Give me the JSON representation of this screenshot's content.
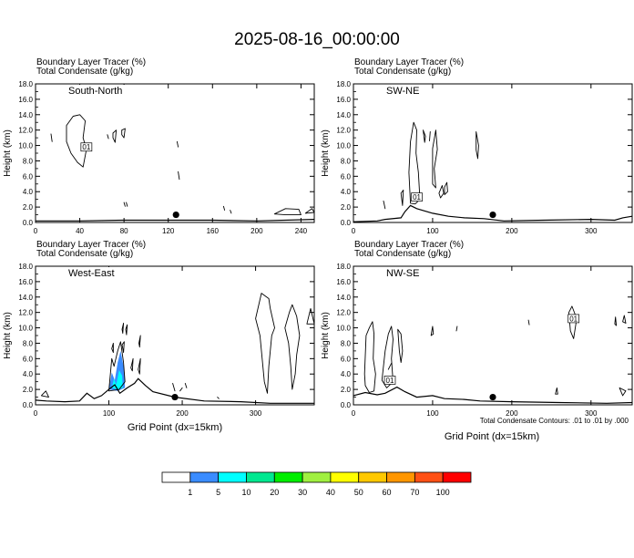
{
  "title": "2025-08-16_00:00:00",
  "panel_header": {
    "line1": "Boundary Layer Tracer   (%)",
    "line2": "Total Condensate   (g/kg)"
  },
  "ylabel": "Height (km)",
  "xlabel": "Grid Point (dx=15km)",
  "contour_note": "Total Condensate Contours: .01 to .01 by .000",
  "contour_label": "01",
  "colorbar": {
    "labels": [
      "1",
      "5",
      "10",
      "20",
      "30",
      "40",
      "50",
      "60",
      "70",
      "100"
    ],
    "colors": [
      "#ffffff",
      "#3a8cff",
      "#00ffff",
      "#00e890",
      "#00ee00",
      "#a0f040",
      "#ffff00",
      "#ffc800",
      "#ff9600",
      "#ff5014",
      "#ff0000"
    ]
  },
  "chart_data": [
    {
      "type": "contour",
      "label": "South-North",
      "xlim": [
        0,
        252
      ],
      "ylim": [
        0,
        18
      ],
      "xticks": [
        "0",
        "40",
        "80",
        "120",
        "160",
        "200",
        "240"
      ],
      "yticks": [
        "0.0",
        "2.0",
        "4.0",
        "6.0",
        "8.0",
        "10.0",
        "12.0",
        "14.0",
        "16.0",
        "18.0"
      ],
      "marker": [
        127,
        1.0
      ],
      "terrain": [
        [
          0,
          0.2
        ],
        [
          40,
          0.2
        ],
        [
          80,
          0.3
        ],
        [
          110,
          0.3
        ],
        [
          160,
          0.3
        ],
        [
          200,
          0.2
        ],
        [
          252,
          0.4
        ]
      ],
      "contours": [
        [
          [
            28,
            12.6
          ],
          [
            34,
            13.8
          ],
          [
            40,
            14.0
          ],
          [
            45,
            13.2
          ],
          [
            43,
            11.0
          ],
          [
            46,
            9.5
          ],
          [
            43,
            7.2
          ],
          [
            38,
            7.8
          ],
          [
            32,
            9.0
          ],
          [
            28,
            10.5
          ]
        ],
        [
          [
            14,
            11.5
          ],
          [
            15,
            10.5
          ]
        ],
        [
          [
            70,
            11.6
          ],
          [
            73,
            12.0
          ],
          [
            72,
            10.4
          ],
          [
            70,
            11.0
          ]
        ],
        [
          [
            78,
            12.0
          ],
          [
            81,
            12.2
          ],
          [
            80,
            11.0
          ],
          [
            78,
            11.4
          ]
        ],
        [
          [
            65,
            11.4
          ],
          [
            66,
            10.9
          ]
        ],
        [
          [
            128,
            10.5
          ],
          [
            129,
            9.8
          ]
        ],
        [
          [
            129,
            6.6
          ],
          [
            130,
            5.6
          ]
        ],
        [
          [
            80,
            2.6
          ],
          [
            81,
            2.1
          ]
        ],
        [
          [
            82,
            2.6
          ],
          [
            83,
            2.1
          ]
        ],
        [
          [
            170,
            2.1
          ],
          [
            171,
            1.6
          ]
        ],
        [
          [
            176,
            1.6
          ],
          [
            177,
            1.2
          ]
        ],
        [
          [
            216,
            1.1
          ],
          [
            226,
            1.8
          ],
          [
            238,
            1.7
          ],
          [
            240,
            1.0
          ],
          [
            226,
            1.0
          ]
        ],
        [
          [
            244,
            1.2
          ],
          [
            250,
            1.8
          ],
          [
            252,
            1.3
          ]
        ]
      ],
      "labels": [
        [
          46,
          9.8,
          "01"
        ]
      ],
      "fills": []
    },
    {
      "type": "contour",
      "label": "SW-NE",
      "xlim": [
        0,
        352
      ],
      "ylim": [
        0,
        18
      ],
      "xticks": [
        "0",
        "100",
        "200",
        "300"
      ],
      "yticks": [
        "0.0",
        "2.0",
        "4.0",
        "6.0",
        "8.0",
        "10.0",
        "12.0",
        "14.0",
        "16.0",
        "18.0"
      ],
      "marker": [
        176,
        1.0
      ],
      "terrain": [
        [
          0,
          0.1
        ],
        [
          30,
          0.2
        ],
        [
          40,
          0.4
        ],
        [
          60,
          0.6
        ],
        [
          65,
          1.4
        ],
        [
          72,
          2.2
        ],
        [
          80,
          1.8
        ],
        [
          100,
          1.2
        ],
        [
          120,
          0.8
        ],
        [
          140,
          0.6
        ],
        [
          165,
          0.5
        ],
        [
          190,
          0.2
        ],
        [
          240,
          0.3
        ],
        [
          300,
          0.4
        ],
        [
          330,
          0.3
        ],
        [
          340,
          0.6
        ],
        [
          352,
          0.8
        ]
      ],
      "contours": [
        [
          [
            72,
            2.5
          ],
          [
            70,
            6.5
          ],
          [
            72,
            10.5
          ],
          [
            76,
            13.0
          ],
          [
            80,
            12.0
          ],
          [
            79,
            9.0
          ],
          [
            82,
            6.5
          ],
          [
            84,
            3.0
          ],
          [
            78,
            2.4
          ]
        ],
        [
          [
            88,
            12.0
          ],
          [
            90,
            10.4
          ],
          [
            91,
            11.2
          ]
        ],
        [
          [
            96,
            10.6
          ],
          [
            97,
            11.8
          ]
        ],
        [
          [
            100,
            9.6
          ],
          [
            104,
            12.0
          ],
          [
            106,
            9.5
          ],
          [
            102,
            7.0
          ],
          [
            104,
            4.5
          ],
          [
            100,
            5.0
          ]
        ],
        [
          [
            108,
            3.8
          ],
          [
            112,
            4.8
          ],
          [
            114,
            3.8
          ],
          [
            110,
            3.2
          ]
        ],
        [
          [
            115,
            4.6
          ],
          [
            118,
            5.2
          ],
          [
            119,
            4.0
          ],
          [
            115,
            3.6
          ]
        ],
        [
          [
            62,
            2.2
          ],
          [
            60,
            3.8
          ],
          [
            63,
            4.2
          ]
        ],
        [
          [
            155,
            11.8
          ],
          [
            158,
            10.0
          ],
          [
            157,
            8.3
          ],
          [
            155,
            9.4
          ]
        ],
        [
          [
            38,
            2.8
          ],
          [
            40,
            1.8
          ]
        ]
      ],
      "labels": [
        [
          80,
          3.3,
          "01"
        ]
      ],
      "fills": []
    },
    {
      "type": "contour",
      "label": "West-East",
      "xlim": [
        0,
        380
      ],
      "ylim": [
        0,
        18
      ],
      "xticks": [
        "0",
        "100",
        "200",
        "300"
      ],
      "yticks": [
        "0.0",
        "2.0",
        "4.0",
        "6.0",
        "8.0",
        "10.0",
        "12.0",
        "14.0",
        "16.0",
        "18.0"
      ],
      "marker": [
        190,
        1.0
      ],
      "terrain": [
        [
          0,
          0.6
        ],
        [
          15,
          0.5
        ],
        [
          40,
          0.4
        ],
        [
          60,
          0.5
        ],
        [
          70,
          1.5
        ],
        [
          80,
          0.8
        ],
        [
          90,
          1.2
        ],
        [
          100,
          2.0
        ],
        [
          108,
          2.6
        ],
        [
          115,
          1.5
        ],
        [
          125,
          2.2
        ],
        [
          135,
          2.8
        ],
        [
          140,
          3.4
        ],
        [
          150,
          2.5
        ],
        [
          160,
          1.7
        ],
        [
          190,
          1.0
        ],
        [
          230,
          0.5
        ],
        [
          280,
          0.4
        ],
        [
          320,
          0.2
        ],
        [
          380,
          0.2
        ]
      ],
      "contours": [
        [
          [
            100,
            1.8
          ],
          [
            104,
            6.0
          ],
          [
            107,
            5.0
          ],
          [
            112,
            7.0
          ],
          [
            116,
            8.2
          ],
          [
            120,
            5.5
          ],
          [
            122,
            3.0
          ],
          [
            114,
            2.0
          ]
        ],
        [
          [
            104,
            7.3
          ],
          [
            106,
            8.0
          ],
          [
            106,
            6.8
          ]
        ],
        [
          [
            118,
            7.8
          ],
          [
            121,
            8.2
          ],
          [
            120,
            6.8
          ]
        ],
        [
          [
            130,
            4.8
          ],
          [
            133,
            6.0
          ],
          [
            132,
            4.4
          ]
        ],
        [
          [
            140,
            4.6
          ],
          [
            143,
            6.0
          ],
          [
            142,
            4.0
          ]
        ],
        [
          [
            141,
            8.0
          ],
          [
            143,
            9.0
          ],
          [
            142,
            7.5
          ]
        ],
        [
          [
            118,
            9.8
          ],
          [
            120,
            10.6
          ],
          [
            119,
            9.3
          ]
        ],
        [
          [
            123,
            9.8
          ],
          [
            125,
            10.4
          ],
          [
            124,
            9.1
          ]
        ],
        [
          [
            8,
            1.2
          ],
          [
            14,
            1.8
          ],
          [
            18,
            1.0
          ]
        ],
        [
          [
            187,
            2.8
          ],
          [
            190,
            1.8
          ]
        ],
        [
          [
            197,
            1.8
          ],
          [
            200,
            2.2
          ]
        ],
        [
          [
            204,
            2.8
          ],
          [
            206,
            2.2
          ]
        ],
        [
          [
            248,
            1.0
          ],
          [
            250,
            0.8
          ]
        ],
        [
          [
            300,
            11.2
          ],
          [
            308,
            14.5
          ],
          [
            318,
            13.8
          ],
          [
            320,
            12.5
          ],
          [
            326,
            10.0
          ],
          [
            322,
            9.0
          ],
          [
            318,
            5.0
          ],
          [
            316,
            1.5
          ],
          [
            312,
            3.0
          ],
          [
            306,
            9.0
          ]
        ],
        [
          [
            340,
            10.0
          ],
          [
            346,
            12.0
          ],
          [
            350,
            13.0
          ],
          [
            356,
            11.5
          ],
          [
            360,
            9.0
          ],
          [
            356,
            6.5
          ],
          [
            354,
            4.0
          ],
          [
            350,
            2.0
          ],
          [
            348,
            5.0
          ],
          [
            345,
            8.0
          ]
        ],
        [
          [
            370,
            10.5
          ],
          [
            375,
            12.5
          ],
          [
            380,
            10.5
          ]
        ]
      ],
      "labels": [],
      "fills": [
        {
          "color": "#3a8cff",
          "points": [
            [
              100,
              2.0
            ],
            [
              104,
              4.2
            ],
            [
              108,
              3.2
            ],
            [
              112,
              5.5
            ],
            [
              116,
              7.0
            ],
            [
              121,
              4.5
            ],
            [
              122,
              2.2
            ],
            [
              112,
              1.8
            ]
          ]
        },
        {
          "color": "#00ffff",
          "points": [
            [
              104,
              2.2
            ],
            [
              107,
              3.4
            ],
            [
              110,
              2.6
            ],
            [
              114,
              4.5
            ],
            [
              118,
              3.8
            ],
            [
              119,
              2.2
            ],
            [
              112,
              2.0
            ]
          ]
        }
      ]
    },
    {
      "type": "contour",
      "label": "NW-SE",
      "xlim": [
        0,
        352
      ],
      "ylim": [
        0,
        18
      ],
      "xticks": [
        "0",
        "100",
        "200",
        "300"
      ],
      "yticks": [
        "0.0",
        "2.0",
        "4.0",
        "6.0",
        "8.0",
        "10.0",
        "12.0",
        "14.0",
        "16.0",
        "18.0"
      ],
      "marker": [
        176,
        1.0
      ],
      "terrain": [
        [
          0,
          1.2
        ],
        [
          15,
          1.6
        ],
        [
          30,
          1.3
        ],
        [
          40,
          1.5
        ],
        [
          55,
          2.3
        ],
        [
          65,
          1.7
        ],
        [
          80,
          1.0
        ],
        [
          100,
          1.2
        ],
        [
          115,
          0.8
        ],
        [
          140,
          0.7
        ],
        [
          160,
          0.5
        ],
        [
          200,
          0.4
        ],
        [
          260,
          0.3
        ],
        [
          320,
          0.2
        ],
        [
          352,
          0.3
        ]
      ],
      "contours": [
        [
          [
            14,
            4.0
          ],
          [
            16,
            9.0
          ],
          [
            20,
            10.0
          ],
          [
            24,
            10.8
          ],
          [
            26,
            9.2
          ],
          [
            25,
            6.0
          ],
          [
            28,
            4.0
          ],
          [
            26,
            1.8
          ],
          [
            20,
            1.6
          ],
          [
            15,
            2.5
          ]
        ],
        [
          [
            36,
            3.2
          ],
          [
            40,
            7.0
          ],
          [
            44,
            9.2
          ],
          [
            48,
            10.2
          ],
          [
            50,
            8.5
          ],
          [
            48,
            6.0
          ],
          [
            50,
            3.0
          ],
          [
            42,
            2.2
          ]
        ],
        [
          [
            56,
            9.8
          ],
          [
            60,
            9.2
          ],
          [
            62,
            7.0
          ],
          [
            60,
            5.5
          ],
          [
            58,
            7.0
          ]
        ],
        [
          [
            44,
            4.6
          ],
          [
            48,
            5.4
          ]
        ],
        [
          [
            98,
            9.0
          ],
          [
            100,
            10.2
          ],
          [
            101,
            9.2
          ]
        ],
        [
          [
            130,
            9.6
          ],
          [
            131,
            10.2
          ]
        ],
        [
          [
            221,
            11.0
          ],
          [
            222,
            10.4
          ]
        ],
        [
          [
            255,
            1.4
          ],
          [
            257,
            2.2
          ],
          [
            258,
            1.4
          ]
        ],
        [
          [
            272,
            12.0
          ],
          [
            276,
            12.8
          ],
          [
            282,
            11.2
          ],
          [
            278,
            8.6
          ],
          [
            274,
            9.6
          ]
        ],
        [
          [
            330,
            10.5
          ],
          [
            331,
            11.4
          ],
          [
            332,
            10.3
          ]
        ],
        [
          [
            340,
            10.8
          ],
          [
            342,
            11.6
          ],
          [
            344,
            10.6
          ]
        ],
        [
          [
            336,
            2.2
          ],
          [
            340,
            1.2
          ],
          [
            344,
            1.8
          ]
        ]
      ],
      "labels": [
        [
          46,
          3.2,
          "01"
        ],
        [
          278,
          11.2,
          "01"
        ]
      ],
      "fills": []
    }
  ]
}
